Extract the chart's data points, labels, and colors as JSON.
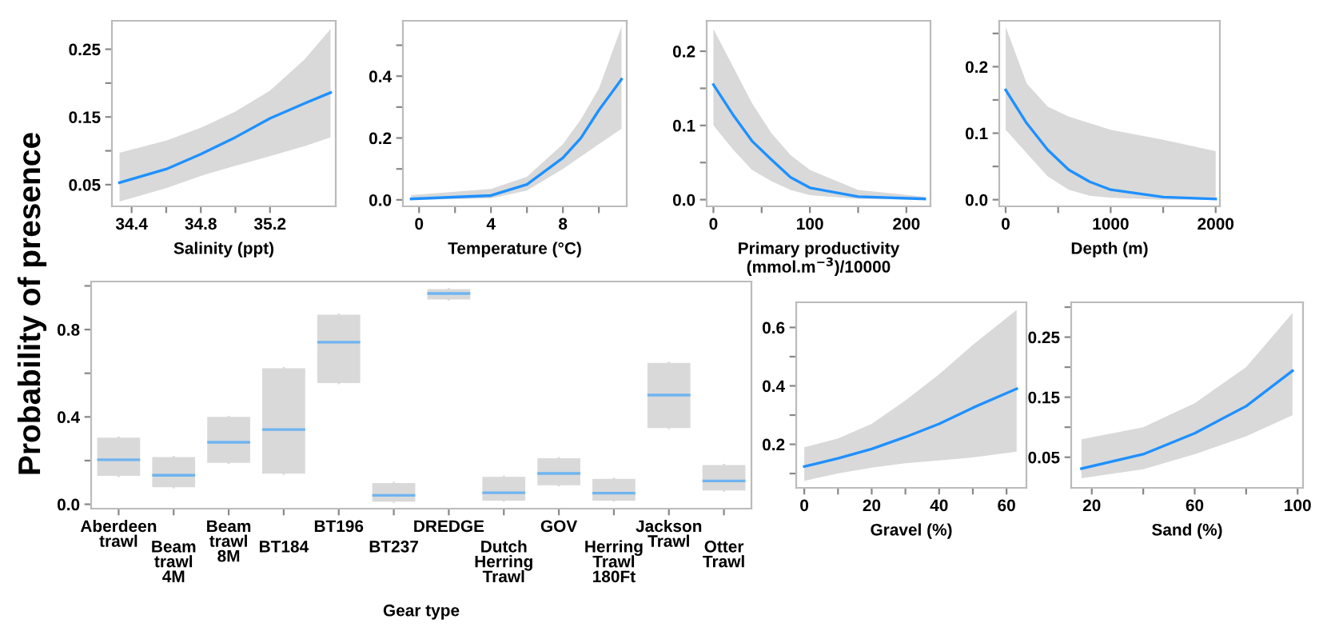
{
  "chart_data": [
    {
      "type": "line",
      "xlabel": "Salinity (ppt)",
      "x": [
        34.33,
        34.6,
        34.8,
        35.0,
        35.2,
        35.4,
        35.55
      ],
      "xlim": [
        34.286,
        35.58
      ],
      "ylim": [
        0.018,
        0.292
      ],
      "xticks": [
        34.4,
        {
          "value": 34.6,
          "label": null
        },
        34.8,
        {
          "value": 35.0,
          "label": null
        },
        35.2
      ],
      "yticks": [
        0.05,
        {
          "value": 0.1,
          "label": null
        },
        0.15,
        {
          "value": 0.2,
          "label": null
        },
        0.25
      ],
      "series": [
        {
          "color": "#1e90ff",
          "values": [
            0.053,
            0.073,
            0.095,
            0.12,
            0.148,
            0.17,
            0.186
          ],
          "lower": [
            0.025,
            0.045,
            0.063,
            0.078,
            0.092,
            0.107,
            0.12
          ],
          "upper": [
            0.097,
            0.115,
            0.134,
            0.158,
            0.189,
            0.235,
            0.28
          ]
        }
      ]
    },
    {
      "type": "line",
      "xlabel": "Temperature (°C)",
      "x": [
        -0.44,
        4,
        6,
        8,
        9,
        10,
        11.26
      ],
      "xlim": [
        -0.9,
        11.55
      ],
      "ylim": [
        -0.021,
        0.579
      ],
      "xticks": [
        0,
        {
          "value": 2,
          "label": null
        },
        4,
        {
          "value": 6,
          "label": null
        },
        8,
        {
          "value": 10,
          "label": null
        }
      ],
      "yticks": [
        {
          "value": 0.0,
          "label": "0.0"
        },
        {
          "value": 0.1,
          "label": null
        },
        0.2,
        {
          "value": 0.3,
          "label": null
        },
        0.4,
        {
          "value": 0.5,
          "label": null
        }
      ],
      "series": [
        {
          "color": "#1e90ff",
          "values": [
            0.003,
            0.014,
            0.05,
            0.136,
            0.2,
            0.29,
            0.39
          ],
          "lower": [
            0.0,
            0.005,
            0.03,
            0.1,
            0.14,
            0.18,
            0.23
          ],
          "upper": [
            0.015,
            0.035,
            0.075,
            0.18,
            0.26,
            0.36,
            0.56
          ]
        }
      ]
    },
    {
      "type": "line",
      "xlabel": "Primary productivity\n(mmol.m$^{−3}$)/10000",
      "x": [
        0,
        20,
        40,
        60,
        80,
        100,
        150,
        219
      ],
      "xlim": [
        -7,
        225
      ],
      "ylim": [
        -0.009,
        0.241
      ],
      "xticks": [
        0,
        {
          "value": 50,
          "label": null
        },
        100,
        {
          "value": 150,
          "label": null
        },
        200
      ],
      "yticks": [
        {
          "value": 0.0,
          "label": "0.0"
        },
        {
          "value": 0.05,
          "label": null
        },
        0.1,
        {
          "value": 0.15,
          "label": null
        },
        0.2
      ],
      "series": [
        {
          "color": "#1e90ff",
          "values": [
            0.155,
            0.115,
            0.079,
            0.054,
            0.03,
            0.016,
            0.004,
            0.001
          ],
          "lower": [
            0.1,
            0.068,
            0.04,
            0.025,
            0.013,
            0.006,
            0.001,
            0.0
          ],
          "upper": [
            0.23,
            0.18,
            0.13,
            0.09,
            0.06,
            0.04,
            0.013,
            0.004
          ]
        }
      ]
    },
    {
      "type": "line",
      "xlabel": "Depth (m)",
      "x": [
        0,
        200,
        400,
        600,
        800,
        1000,
        1500,
        2000
      ],
      "xlim": [
        -61,
        2040
      ],
      "ylim": [
        -0.01,
        0.269
      ],
      "xticks": [
        0,
        {
          "value": 500,
          "label": null
        },
        1000,
        {
          "value": 1500,
          "label": null
        },
        2000
      ],
      "yticks": [
        {
          "value": 0.0,
          "label": "0.0"
        },
        {
          "value": 0.05,
          "label": null
        },
        0.1,
        {
          "value": 0.15,
          "label": null
        },
        0.2,
        {
          "value": 0.25,
          "label": null
        }
      ],
      "series": [
        {
          "color": "#1e90ff",
          "values": [
            0.165,
            0.115,
            0.075,
            0.045,
            0.027,
            0.015,
            0.004,
            0.001
          ],
          "lower": [
            0.105,
            0.07,
            0.035,
            0.015,
            0.006,
            0.003,
            0.0,
            0.0
          ],
          "upper": [
            0.26,
            0.175,
            0.14,
            0.125,
            0.115,
            0.105,
            0.09,
            0.073
          ]
        }
      ]
    },
    {
      "type": "box",
      "xlabel": "Gear type",
      "ylabel": "Probability of presence",
      "ylim": [
        -0.02,
        1.02
      ],
      "categories": [
        "Aberdeen\ntrawl",
        "Beam\ntrawl\n4M",
        "Beam\ntrawl\n8M",
        "BT184",
        "BT196",
        "BT237",
        "DREDGE",
        "Dutch\nHerring\nTrawl",
        "GOV",
        "Herring\nTrawl\n180Ft",
        "Jackson\nTrawl",
        "Otter\nTrawl"
      ],
      "yticks": [
        {
          "value": 0.0,
          "label": "0.0"
        },
        {
          "value": 0.2,
          "label": null
        },
        0.4,
        {
          "value": 0.6,
          "label": null
        },
        0.8,
        {
          "value": 1.0,
          "label": null
        }
      ],
      "series": [
        {
          "color": "#d9d9d9",
          "boxes": [
            {
              "low": 0.13,
              "q1": 0.13,
              "median": 0.204,
              "q3": 0.305,
              "high": 0.305
            },
            {
              "low": 0.078,
              "q1": 0.078,
              "median": 0.133,
              "q3": 0.216,
              "high": 0.216
            },
            {
              "low": 0.19,
              "q1": 0.19,
              "median": 0.284,
              "q3": 0.4,
              "high": 0.4
            },
            {
              "low": 0.14,
              "q1": 0.14,
              "median": 0.342,
              "q3": 0.623,
              "high": 0.623
            },
            {
              "low": 0.555,
              "q1": 0.555,
              "median": 0.742,
              "q3": 0.868,
              "high": 0.868
            },
            {
              "low": 0.012,
              "q1": 0.012,
              "median": 0.041,
              "q3": 0.097,
              "high": 0.097
            },
            {
              "low": 0.938,
              "q1": 0.938,
              "median": 0.965,
              "q3": 0.985,
              "high": 0.985
            },
            {
              "low": 0.017,
              "q1": 0.017,
              "median": 0.053,
              "q3": 0.126,
              "high": 0.126
            },
            {
              "low": 0.087,
              "q1": 0.087,
              "median": 0.141,
              "q3": 0.211,
              "high": 0.211
            },
            {
              "low": 0.017,
              "q1": 0.017,
              "median": 0.051,
              "q3": 0.116,
              "high": 0.116
            },
            {
              "low": 0.349,
              "q1": 0.349,
              "median": 0.5,
              "q3": 0.647,
              "high": 0.647
            },
            {
              "low": 0.063,
              "q1": 0.063,
              "median": 0.107,
              "q3": 0.18,
              "high": 0.18
            }
          ]
        }
      ]
    },
    {
      "type": "line",
      "xlabel": "Gravel (%)",
      "x": [
        0,
        10,
        20,
        30,
        40,
        50,
        63
      ],
      "xlim": [
        -2.4,
        65.9
      ],
      "ylim": [
        0.051,
        0.686
      ],
      "xticks": [
        0,
        {
          "value": 10,
          "label": null
        },
        20,
        {
          "value": 30,
          "label": null
        },
        40,
        {
          "value": 50,
          "label": null
        },
        60
      ],
      "yticks": [
        {
          "value": 0.1,
          "label": null
        },
        0.2,
        {
          "value": 0.3,
          "label": null
        },
        0.4,
        {
          "value": 0.5,
          "label": null
        },
        0.6
      ],
      "series": [
        {
          "color": "#1e90ff",
          "values": [
            0.124,
            0.152,
            0.184,
            0.225,
            0.27,
            0.325,
            0.39
          ],
          "lower": [
            0.075,
            0.1,
            0.12,
            0.135,
            0.145,
            0.155,
            0.175
          ],
          "upper": [
            0.19,
            0.22,
            0.27,
            0.35,
            0.44,
            0.54,
            0.66
          ]
        }
      ]
    },
    {
      "type": "line",
      "xlabel": "Sand (%)",
      "x": [
        16,
        40,
        60,
        80,
        98
      ],
      "xlim": [
        12,
        102.1
      ],
      "ylim": [
        -0.001,
        0.308
      ],
      "xticks": [
        20,
        {
          "value": 40,
          "label": null
        },
        60,
        {
          "value": 80,
          "label": null
        },
        100
      ],
      "yticks": [
        0.05,
        {
          "value": 0.1,
          "label": null
        },
        0.15,
        {
          "value": 0.2,
          "label": null
        },
        0.25,
        {
          "value": 0.3,
          "label": null
        }
      ],
      "series": [
        {
          "color": "#1e90ff",
          "values": [
            0.031,
            0.055,
            0.09,
            0.135,
            0.194
          ],
          "lower": [
            0.015,
            0.03,
            0.055,
            0.085,
            0.12
          ],
          "upper": [
            0.08,
            0.1,
            0.14,
            0.2,
            0.29
          ]
        }
      ]
    }
  ]
}
